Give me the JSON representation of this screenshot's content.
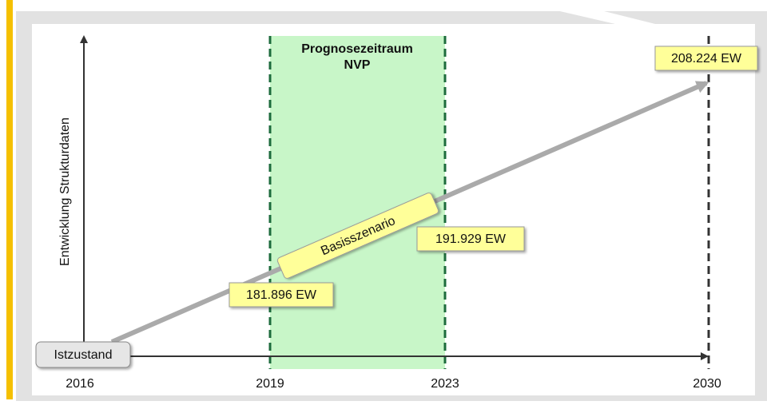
{
  "y_axis_label": "Entwicklung Strukturdaten",
  "forecast_period": {
    "lines": [
      "Prognosezeitraum",
      "NVP"
    ]
  },
  "scenario": "Basisszenario",
  "current_state": "Istzustand",
  "values": {
    "y2019": "181.896 EW",
    "y2023": "191.929 EW",
    "y2030": "208.224 EW"
  },
  "years": [
    "2016",
    "2019",
    "2023",
    "2030"
  ]
}
